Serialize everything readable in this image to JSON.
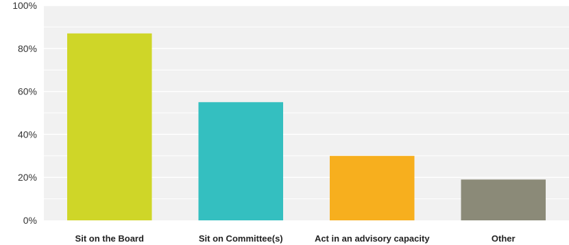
{
  "chart_data": {
    "type": "bar",
    "categories": [
      "Sit on the Board",
      "Sit on Committee(s)",
      "Act in an advisory capacity",
      "Other"
    ],
    "values": [
      87,
      55,
      30,
      19
    ],
    "colors": [
      "#cfd628",
      "#34bfc0",
      "#f7af1e",
      "#8b8a78"
    ],
    "ylim": [
      0,
      100
    ],
    "yticks": [
      0,
      20,
      40,
      60,
      80,
      100
    ],
    "ytick_labels": [
      "0%",
      "20%",
      "40%",
      "60%",
      "80%",
      "100%"
    ],
    "title": "",
    "xlabel": "",
    "ylabel": "",
    "grid": true,
    "plot_background": "#f1f1f1",
    "grid_color": "#ffffff"
  }
}
